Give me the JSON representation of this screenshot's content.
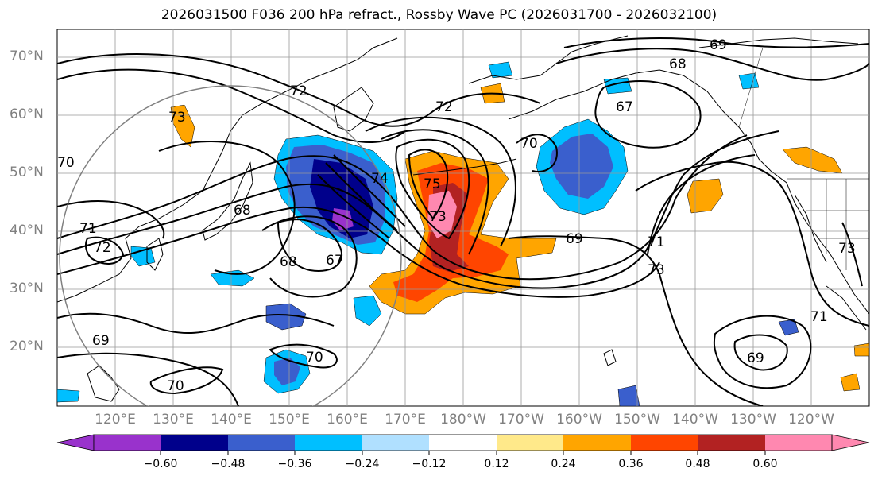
{
  "title": "2026031500 F036 200 hPa refract., Rossby Wave PC (2026031700 - 2026032100)",
  "lat_labels": [
    "70°N",
    "60°N",
    "50°N",
    "40°N",
    "30°N",
    "20°N"
  ],
  "lon_labels": [
    "120°E",
    "130°E",
    "140°E",
    "150°E",
    "160°E",
    "170°E",
    "180°W",
    "170°W",
    "160°W",
    "150°W",
    "140°W",
    "130°W",
    "120°W"
  ],
  "colorbar": {
    "ticks": [
      "−0.60",
      "−0.48",
      "−0.36",
      "−0.24",
      "−0.12",
      "0.12",
      "0.24",
      "0.36",
      "0.48",
      "0.60"
    ],
    "colors": [
      "#9932cc",
      "#00008b",
      "#3a5fcd",
      "#00bfff",
      "#b0e0ff",
      "#ffffff",
      "#ffe98a",
      "#ffa500",
      "#ff4500",
      "#b22222",
      "#ff88b0"
    ]
  },
  "contour_labels": [
    "69",
    "68",
    "72",
    "67",
    "72",
    "70",
    "73",
    "74",
    "75",
    "73",
    "68",
    "67",
    "68",
    "71",
    "72",
    "71",
    "69",
    "73",
    "70",
    "71",
    "69",
    "69",
    "70",
    "70",
    "73"
  ],
  "colors": {
    "background": "#ffffff",
    "grid": "#999999",
    "contour": "#000000",
    "circle": "#808080"
  }
}
